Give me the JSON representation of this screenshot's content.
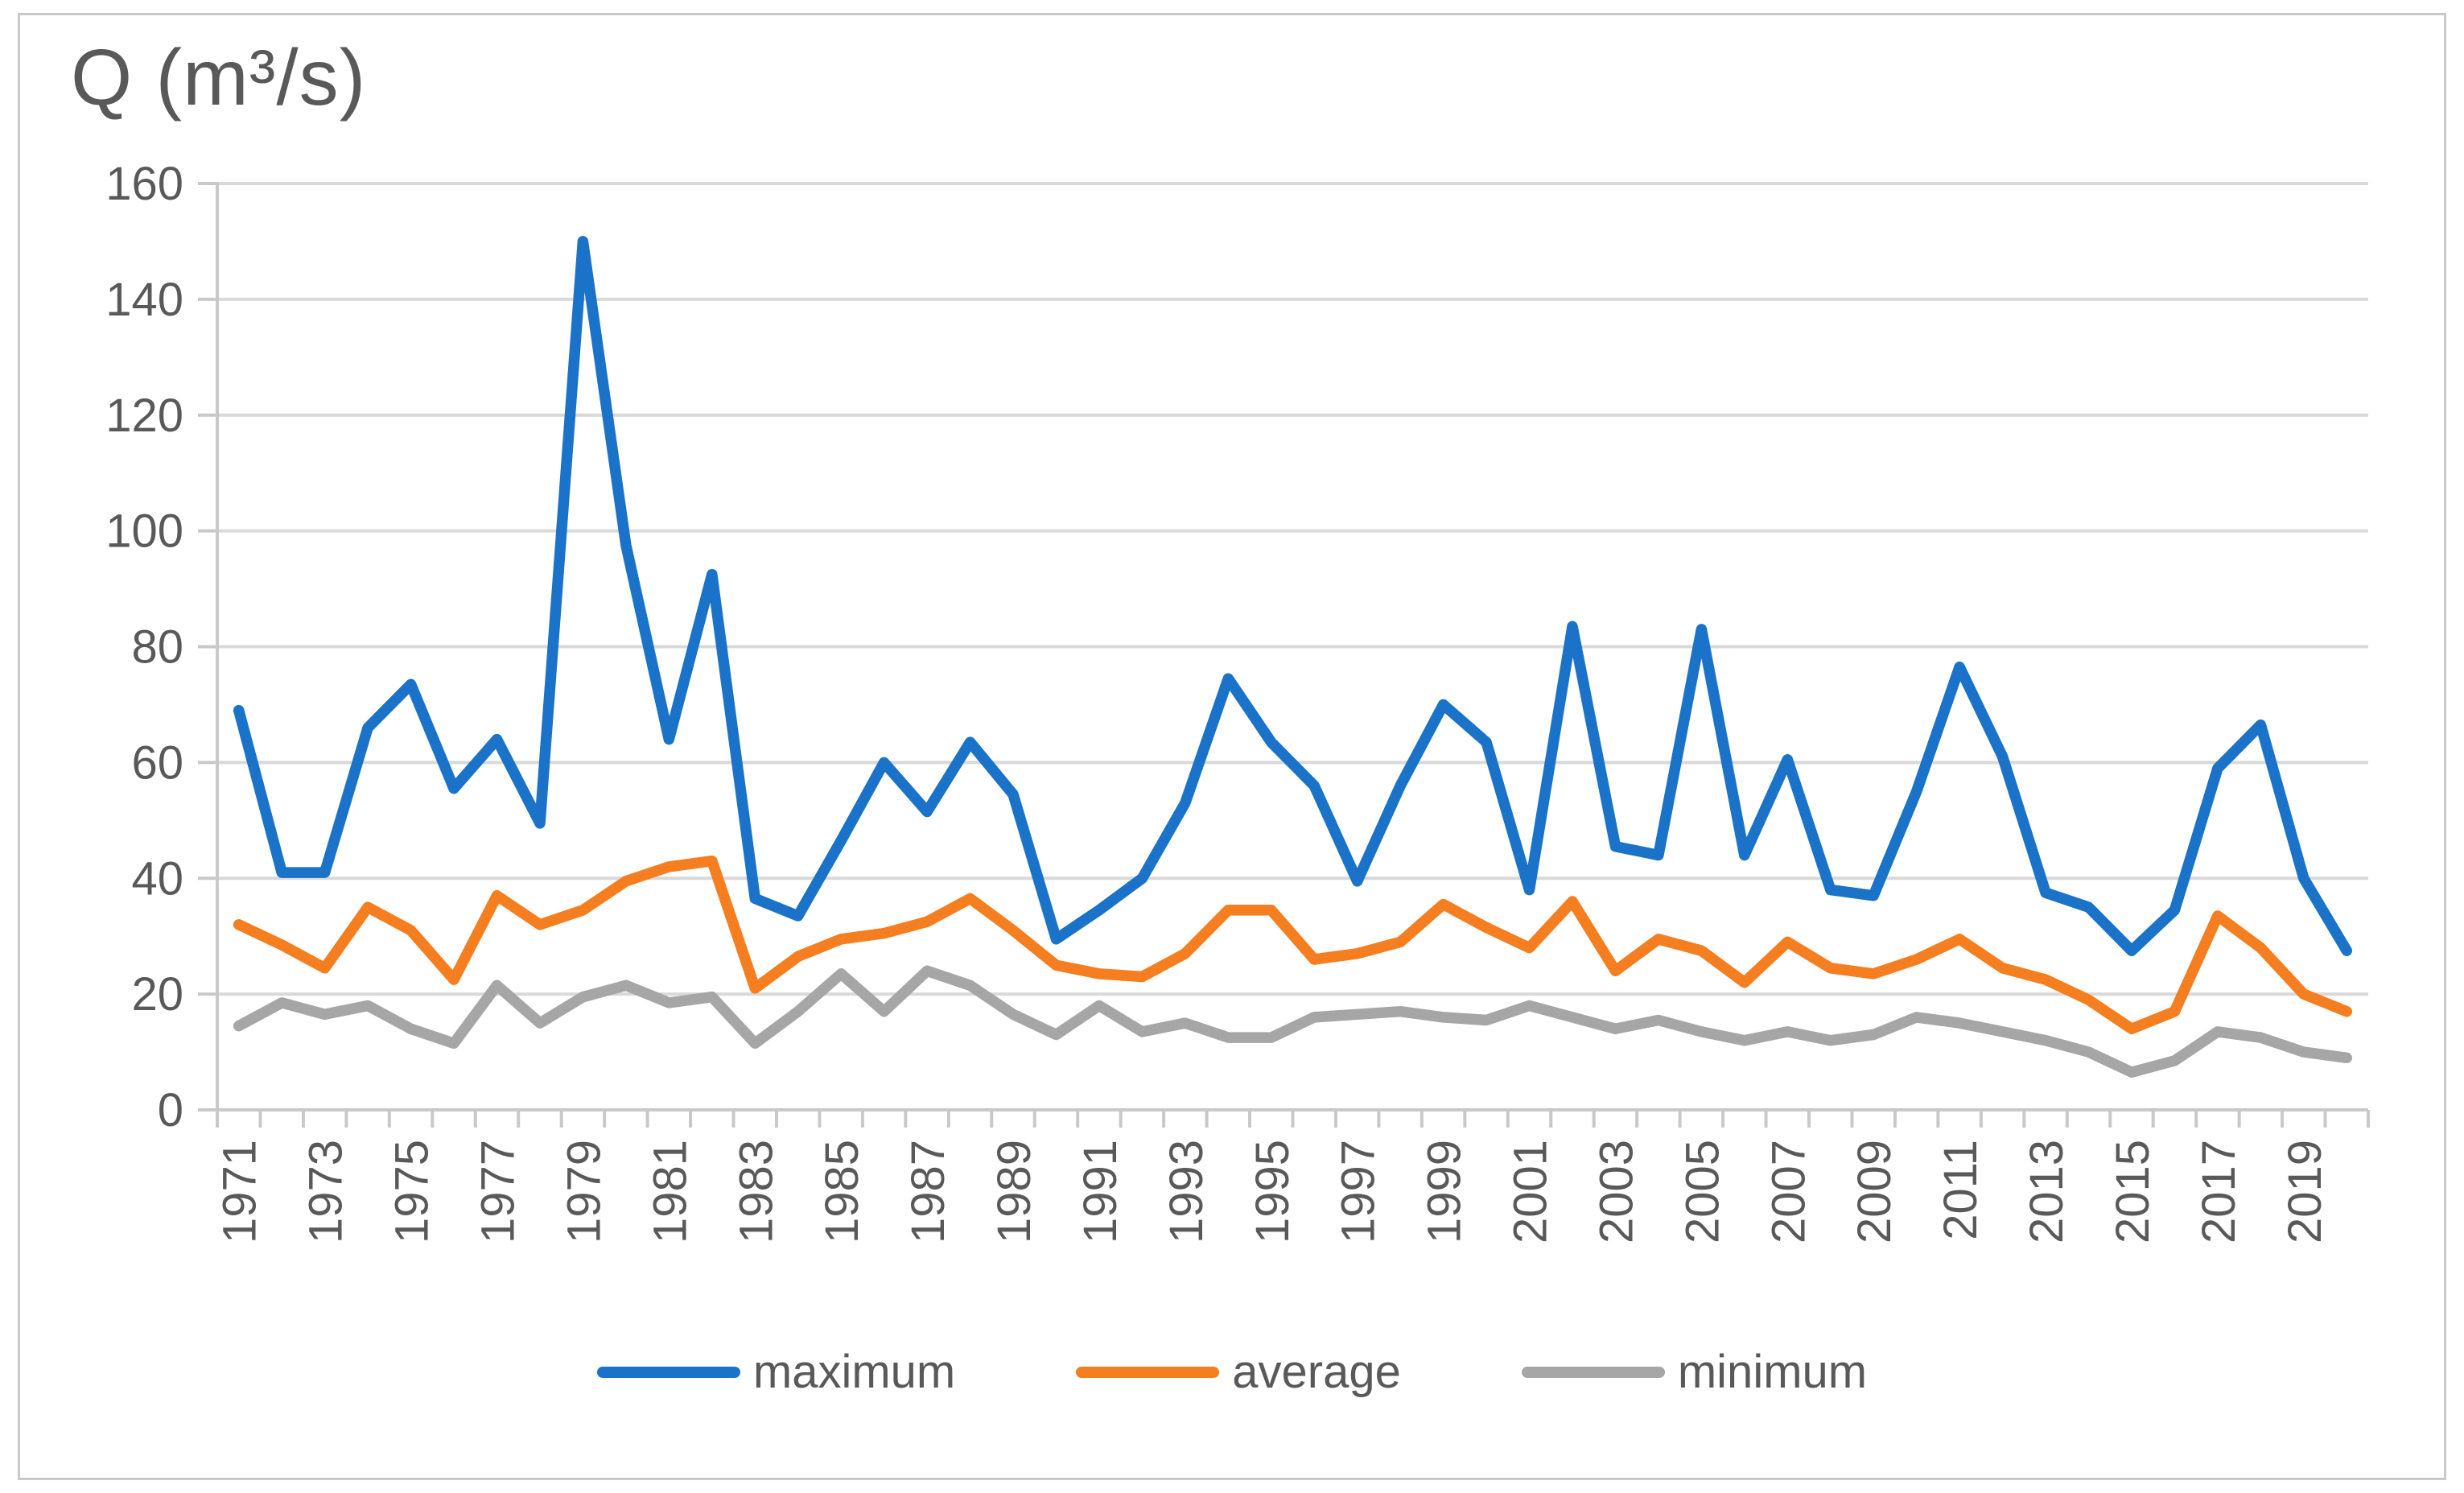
{
  "title": "Q (m³/s)",
  "legend": [
    {
      "label": "maximum",
      "color": "#1A73C8"
    },
    {
      "label": "average",
      "color": "#F57E20"
    },
    {
      "label": "minimum",
      "color": "#A6A6A6"
    }
  ],
  "colors": {
    "text": "#595959",
    "gridline": "#D9D9D9",
    "axis": "#C9C9C9",
    "background": "#FFFFFF"
  },
  "chart_data": {
    "type": "line",
    "title": "Q (m³/s)",
    "xlabel": "",
    "ylabel": "Q (m³/s)",
    "ylim": [
      0,
      160
    ],
    "y_ticks": [
      0,
      20,
      40,
      60,
      80,
      100,
      120,
      140,
      160
    ],
    "grid": true,
    "legend_position": "bottom",
    "x": [
      1971,
      1972,
      1973,
      1974,
      1975,
      1976,
      1977,
      1978,
      1979,
      1980,
      1981,
      1982,
      1983,
      1984,
      1985,
      1986,
      1987,
      1988,
      1989,
      1990,
      1991,
      1992,
      1993,
      1994,
      1995,
      1996,
      1997,
      1998,
      1999,
      2000,
      2001,
      2002,
      2003,
      2004,
      2005,
      2006,
      2007,
      2008,
      2009,
      2010,
      2011,
      2012,
      2013,
      2014,
      2015,
      2016,
      2017,
      2018,
      2019,
      2020
    ],
    "x_tick_labels": [
      "1971",
      "1973",
      "1975",
      "1977",
      "1979",
      "1981",
      "1983",
      "1985",
      "1987",
      "1989",
      "1991",
      "1993",
      "1995",
      "1997",
      "1999",
      "2001",
      "2003",
      "2005",
      "2007",
      "2009",
      "2011",
      "2013",
      "2015",
      "2017",
      "2019"
    ],
    "series": [
      {
        "name": "maximum",
        "color": "#1A73C8",
        "values": [
          69,
          41,
          41,
          66,
          73.5,
          55.5,
          64,
          49.5,
          150,
          97.5,
          64,
          92.5,
          36.5,
          33.5,
          46.5,
          60,
          51.5,
          63.5,
          54.5,
          29.5,
          34.5,
          40,
          53,
          74.5,
          63.5,
          56,
          39.5,
          56,
          70,
          63.5,
          38,
          83.5,
          45.5,
          44,
          83,
          44,
          60.5,
          38,
          37,
          55,
          76.5,
          61,
          37.5,
          35,
          27.5,
          34.5,
          59,
          66.5,
          40,
          27.5
        ]
      },
      {
        "name": "average",
        "color": "#F57E20",
        "values": [
          32,
          28.5,
          24.5,
          35,
          31,
          22.5,
          37,
          32,
          34.5,
          39.5,
          42,
          43,
          21,
          26.5,
          29.5,
          30.5,
          32.5,
          36.5,
          31,
          25,
          23.5,
          23,
          27,
          34.5,
          34.5,
          26,
          27,
          29,
          35.5,
          31.5,
          28,
          36,
          24,
          29.5,
          27.5,
          22,
          29,
          24.5,
          23.5,
          26,
          29.5,
          24.5,
          22.5,
          19,
          14,
          17,
          33.5,
          28,
          20,
          17
        ]
      },
      {
        "name": "minimum",
        "color": "#A6A6A6",
        "values": [
          14.5,
          18.5,
          16.5,
          18,
          14,
          11.5,
          21.5,
          15,
          19.5,
          21.5,
          18.5,
          19.5,
          11.5,
          17,
          23.5,
          17,
          24,
          21.5,
          16.5,
          13,
          18,
          13.5,
          15,
          12.5,
          12.5,
          16,
          16.5,
          17,
          16,
          15.5,
          18,
          16,
          14,
          15.5,
          13.5,
          12,
          13.5,
          12,
          13,
          16,
          15,
          13.5,
          12,
          10,
          6.5,
          8.5,
          13.5,
          12.5,
          10,
          9
        ]
      }
    ]
  }
}
